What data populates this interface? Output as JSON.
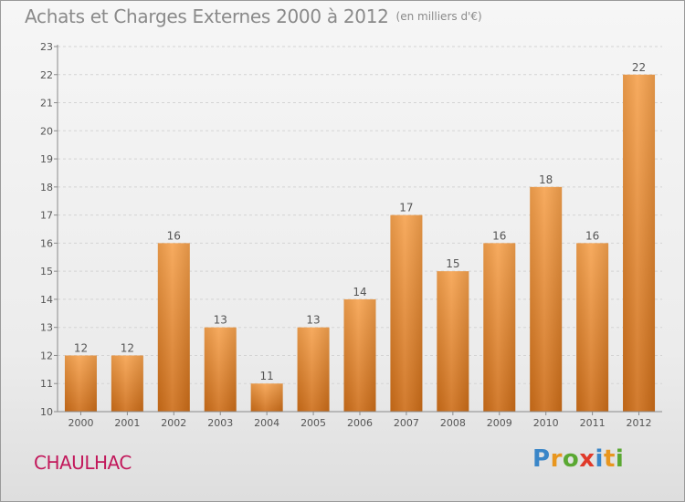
{
  "title": "Achats et Charges Externes 2000 à 2012",
  "unit_label": "(en milliers d'€)",
  "commune": "CHAULHAC",
  "brand": {
    "letters": [
      {
        "char": "P",
        "color": "#3a86c8"
      },
      {
        "char": "r",
        "color": "#e8961e"
      },
      {
        "char": "o",
        "color": "#5aa832"
      },
      {
        "char": "x",
        "color": "#e03a2a"
      },
      {
        "char": "i",
        "color": "#3a86c8"
      },
      {
        "char": "t",
        "color": "#e8961e"
      },
      {
        "char": "i",
        "color": "#5aa832"
      }
    ]
  },
  "colors": {
    "bar_light": "#f6a24e",
    "bar_dark": "#cd6d18",
    "axis": "#8a8a8a",
    "grid": "#d4d4d4",
    "text": "#555555",
    "commune": "#c2185b"
  },
  "chart_data": {
    "type": "bar",
    "title": "Achats et Charges Externes 2000 à 2012",
    "subtitle": "(en milliers d'€)",
    "xlabel": "",
    "ylabel": "",
    "categories": [
      "2000",
      "2001",
      "2002",
      "2003",
      "2004",
      "2005",
      "2006",
      "2007",
      "2008",
      "2009",
      "2010",
      "2011",
      "2012"
    ],
    "values": [
      12,
      12,
      16,
      13,
      11,
      13,
      14,
      17,
      15,
      16,
      18,
      16,
      22
    ],
    "data_labels": [
      "12",
      "12",
      "16",
      "13",
      "11",
      "13",
      "14",
      "17",
      "15",
      "16",
      "18",
      "16",
      "22"
    ],
    "ylim": [
      10,
      23
    ],
    "yticks": [
      10,
      11,
      12,
      13,
      14,
      15,
      16,
      17,
      18,
      19,
      20,
      21,
      22,
      23
    ],
    "grid": true,
    "legend": "none"
  }
}
